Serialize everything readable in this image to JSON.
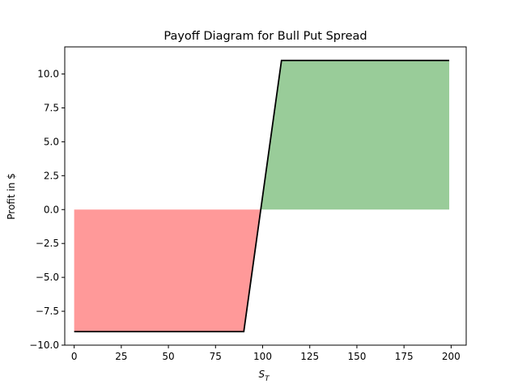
{
  "chart_data": {
    "type": "line",
    "title": "Payoff Diagram for Bull Put Spread",
    "xlabel_main": "S",
    "xlabel_sub": "T",
    "ylabel": "Profit in $",
    "xlim": [
      -5,
      208
    ],
    "ylim": [
      -10,
      12
    ],
    "xticks": [
      0,
      25,
      50,
      75,
      100,
      125,
      150,
      175,
      200
    ],
    "yticks": [
      -10.0,
      -7.5,
      -5.0,
      -2.5,
      0.0,
      2.5,
      5.0,
      7.5,
      10.0
    ],
    "ytick_labels": [
      "−10.0",
      "−7.5",
      "−5.0",
      "−2.5",
      "0.0",
      "2.5",
      "5.0",
      "7.5",
      "10.0"
    ],
    "series": [
      {
        "x": [
          0,
          90,
          110,
          199
        ],
        "y": [
          -9,
          -9,
          11,
          11
        ],
        "color": "#000000"
      }
    ],
    "fills": {
      "loss_color": "#ff9999",
      "profit_color": "#99cc99",
      "loss_range": [
        0,
        99
      ],
      "profit_range": [
        99,
        199
      ]
    },
    "grid": false
  }
}
